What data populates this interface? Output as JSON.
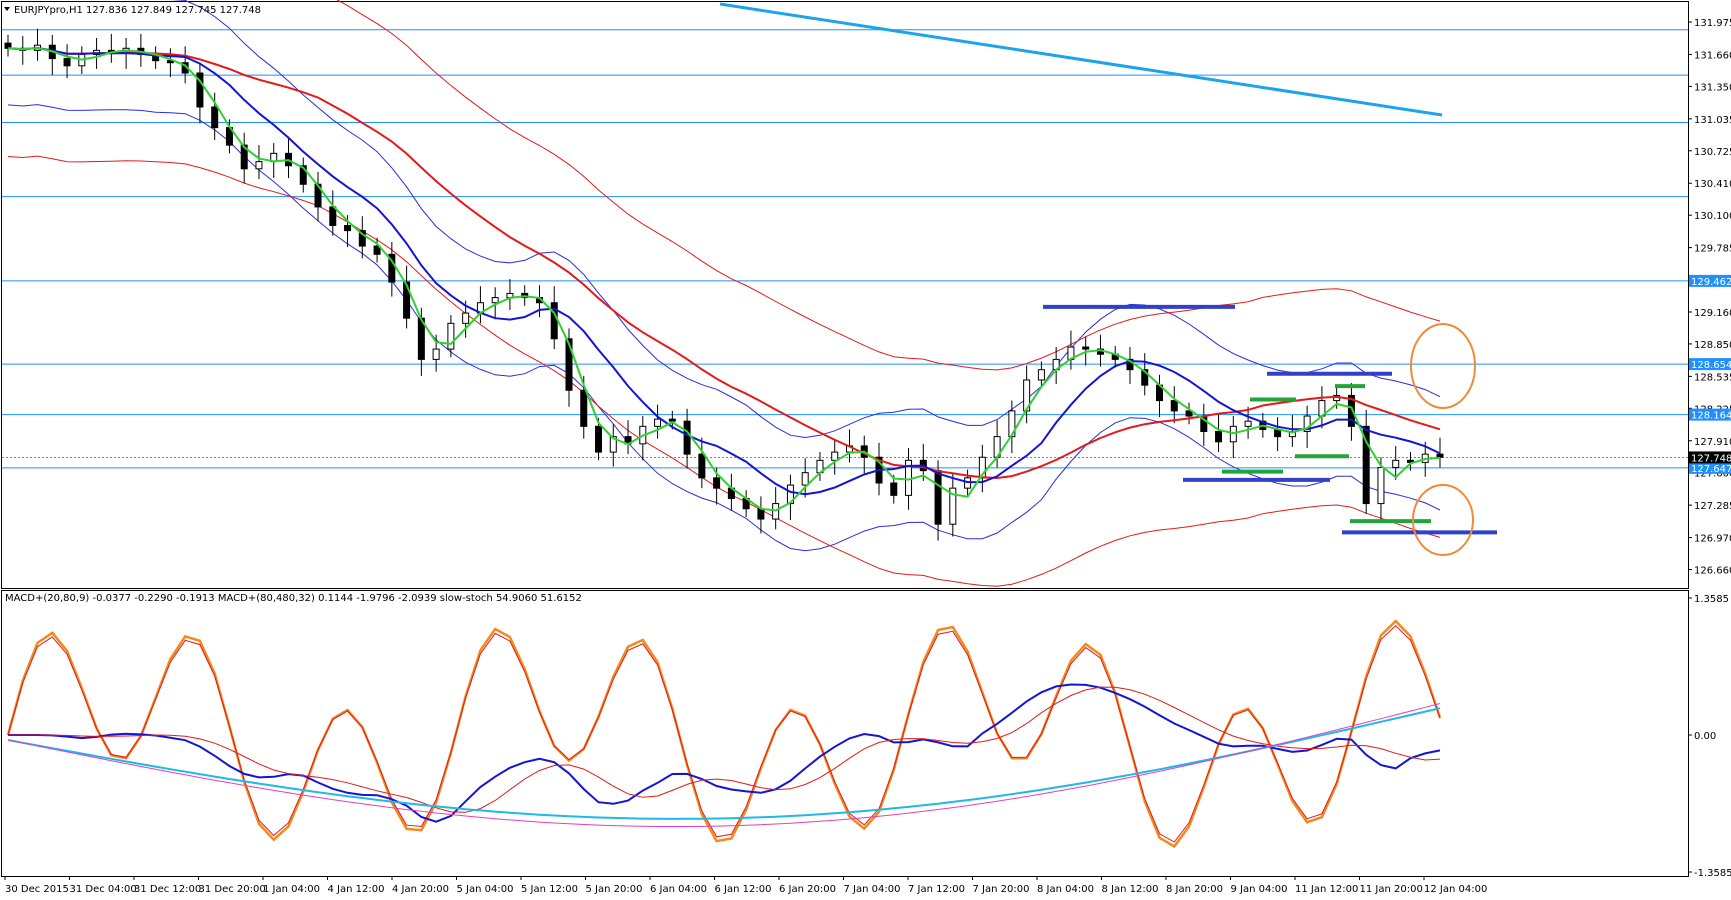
{
  "header": {
    "symbol_line": "EURJPYpro,H1  127.836 127.849 127.745 127.748",
    "indicator_line": "MACD+(20,80,9) -0.0377 -0.2290 -0.1913  MACD+(80,480,32) 0.1144 -1.9796 -2.0939  slow-stoch 54.9060 51.6152"
  },
  "colors": {
    "candle_body": "#000000",
    "hline": "#1e90ff",
    "trendline": "#1ca3ec",
    "ma_fast": "#2fd02f",
    "ma_mid": "#1414d4",
    "ma_slow": "#e41a1a",
    "envelope_blue": "#2c2cdc",
    "envelope_red": "#e41a1a",
    "support_blue": "#3040c8",
    "support_green": "#22a43a",
    "circle": "#ef8a3a",
    "stoch": "#f28a1e",
    "price_tag_bg": "#1e90ff",
    "current_tag_bg": "#000000",
    "magenta": "#e040c0",
    "cyan": "#20b8e8"
  },
  "price_axis_labels": [
    "131.975",
    "131.660",
    "131.350",
    "131.035",
    "130.725",
    "130.410",
    "130.100",
    "129.785",
    "129.160",
    "128.850",
    "128.535",
    "128.225",
    "127.910",
    "127.600",
    "127.285",
    "126.970",
    "126.660"
  ],
  "price_tags": [
    {
      "label": "129.462",
      "price": 129.462
    },
    {
      "label": "128.654",
      "price": 128.654
    },
    {
      "label": "128.164",
      "price": 128.164
    },
    {
      "label": "127.647",
      "price": 127.647
    }
  ],
  "current_price": {
    "label": "127.748",
    "price": 127.748
  },
  "indicator_axis_labels": [
    "1.3585",
    "0.00",
    "-1.3585"
  ],
  "time_labels": [
    "30 Dec 2015",
    "31 Dec 04:00",
    "31 Dec 12:00",
    "31 Dec 20:00",
    "1 Jan 04:00",
    "4 Jan 12:00",
    "4 Jan 20:00",
    "5 Jan 04:00",
    "5 Jan 12:00",
    "5 Jan 20:00",
    "6 Jan 04:00",
    "6 Jan 12:00",
    "6 Jan 20:00",
    "7 Jan 04:00",
    "7 Jan 12:00",
    "7 Jan 20:00",
    "8 Jan 04:00",
    "8 Jan 12:00",
    "8 Jan 20:00",
    "9 Jan 04:00",
    "11 Jan 12:00",
    "11 Jan 20:00",
    "12 Jan 04:00"
  ],
  "chart_data": {
    "type": "candlestick",
    "symbol": "EURJPYpro",
    "timeframe": "H1",
    "ylim": [
      126.5,
      132.15
    ],
    "horizontal_levels": [
      131.9,
      131.46,
      131.0,
      130.28,
      129.462,
      128.654,
      128.164,
      127.647
    ],
    "close_path": [
      131.72,
      131.7,
      131.75,
      131.62,
      131.55,
      131.66,
      131.7,
      131.68,
      131.72,
      131.66,
      131.6,
      131.58,
      131.48,
      131.15,
      130.95,
      130.78,
      130.55,
      130.62,
      130.7,
      130.58,
      130.4,
      130.18,
      130.0,
      129.95,
      129.8,
      129.72,
      129.45,
      129.1,
      128.7,
      128.8,
      129.05,
      129.15,
      129.25,
      129.3,
      129.34,
      129.3,
      129.25,
      128.9,
      128.4,
      128.05,
      127.8,
      127.95,
      127.88,
      128.05,
      128.12,
      128.1,
      127.78,
      127.55,
      127.45,
      127.35,
      127.25,
      127.15,
      127.3,
      127.48,
      127.6,
      127.72,
      127.8,
      127.86,
      127.75,
      127.5,
      127.38,
      127.72,
      127.62,
      127.1,
      127.45,
      127.55,
      127.75,
      127.95,
      128.2,
      128.5,
      128.6,
      128.7,
      128.82,
      128.8,
      128.75,
      128.7,
      128.6,
      128.45,
      128.3,
      128.2,
      128.15,
      128.0,
      127.9,
      128.05,
      128.1,
      128.02,
      127.95,
      128.0,
      128.15,
      128.3,
      128.35,
      128.05,
      127.3,
      127.65,
      127.72,
      127.7,
      127.78,
      127.75
    ]
  }
}
